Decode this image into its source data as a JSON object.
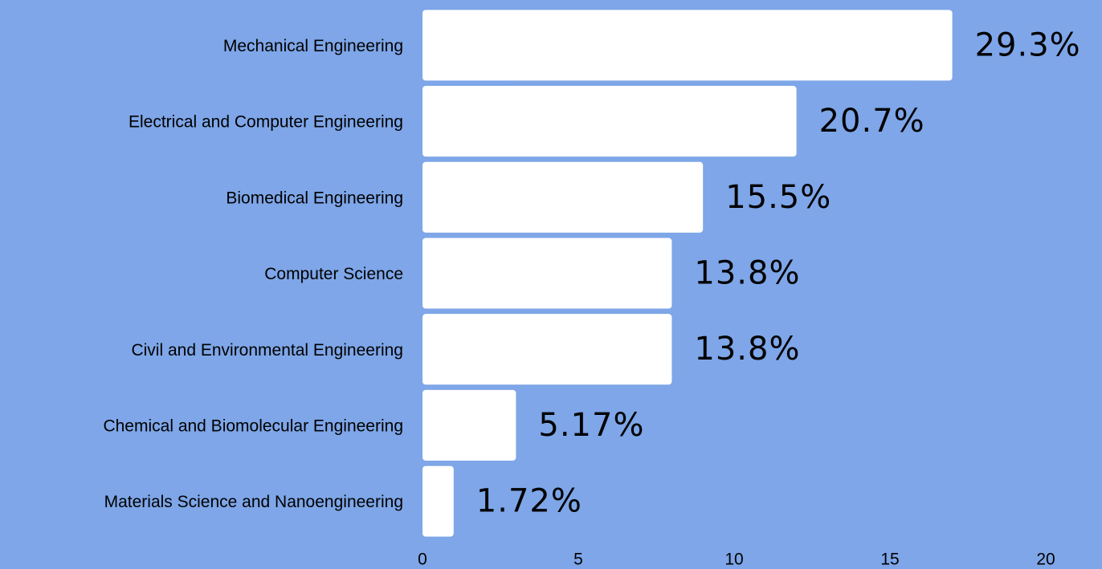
{
  "chart_data": {
    "type": "bar",
    "orientation": "horizontal",
    "categories": [
      "Mechanical Engineering",
      "Electrical and Computer Engineering",
      "Biomedical Engineering",
      "Computer Science",
      "Civil and Environmental Engineering",
      "Chemical and Biomolecular Engineering",
      "Materials Science and Nanoengineering"
    ],
    "values": [
      17,
      12,
      9,
      8,
      8,
      3,
      1
    ],
    "value_labels": [
      "29.3%",
      "20.7%",
      "15.5%",
      "13.8%",
      "13.8%",
      "5.17%",
      "1.72%"
    ],
    "color": "#ffffff",
    "xlim": [
      0,
      20
    ],
    "xticks": [
      0,
      5,
      10,
      15,
      20
    ],
    "grid": false
  }
}
